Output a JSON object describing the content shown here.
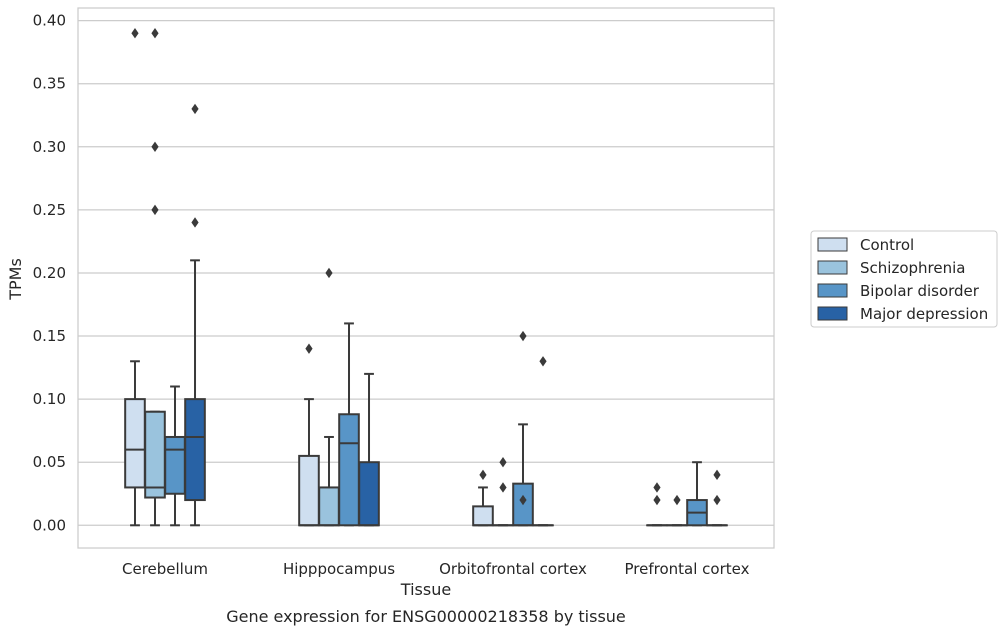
{
  "caption": "Gene expression for ENSG00000218358 by tissue",
  "chart_data": {
    "type": "box",
    "xlabel": "Tissue",
    "ylabel": "TPMs",
    "ylim": [
      -0.018,
      0.41
    ],
    "yticks": [
      "0.00",
      "0.05",
      "0.10",
      "0.15",
      "0.20",
      "0.25",
      "0.30",
      "0.35",
      "0.40"
    ],
    "categories": [
      "Cerebellum",
      "Hipppocampus",
      "Orbitofrontal cortex",
      "Prefrontal cortex"
    ],
    "grid": "horizontal",
    "legend_position": "right",
    "series": [
      {
        "name": "Control",
        "color": "#cfdff0"
      },
      {
        "name": "Schizophrenia",
        "color": "#9ac3dd"
      },
      {
        "name": "Bipolar disorder",
        "color": "#5895c7"
      },
      {
        "name": "Major depression",
        "color": "#2862a5"
      }
    ],
    "boxes": [
      [
        {
          "whislo": 0.0,
          "q1": 0.03,
          "median": 0.06,
          "q3": 0.1,
          "whishi": 0.13,
          "fliers": [
            0.39
          ]
        },
        {
          "whislo": 0.0,
          "q1": 0.022,
          "median": 0.03,
          "q3": 0.09,
          "whishi": 0.09,
          "fliers": [
            0.39,
            0.3,
            0.25
          ]
        },
        {
          "whislo": 0.0,
          "q1": 0.025,
          "median": 0.06,
          "q3": 0.07,
          "whishi": 0.11,
          "fliers": []
        },
        {
          "whislo": 0.0,
          "q1": 0.02,
          "median": 0.07,
          "q3": 0.1,
          "whishi": 0.21,
          "fliers": [
            0.33,
            0.24
          ]
        }
      ],
      [
        {
          "whislo": 0.0,
          "q1": 0.0,
          "median": 0.0,
          "q3": 0.055,
          "whishi": 0.1,
          "fliers": [
            0.14
          ]
        },
        {
          "whislo": 0.0,
          "q1": 0.0,
          "median": 0.0,
          "q3": 0.03,
          "whishi": 0.07,
          "fliers": [
            0.2
          ]
        },
        {
          "whislo": 0.0,
          "q1": 0.0,
          "median": 0.065,
          "q3": 0.088,
          "whishi": 0.16,
          "fliers": []
        },
        {
          "whislo": 0.0,
          "q1": 0.0,
          "median": 0.0,
          "q3": 0.05,
          "whishi": 0.12,
          "fliers": []
        }
      ],
      [
        {
          "whislo": 0.0,
          "q1": 0.0,
          "median": 0.0,
          "q3": 0.015,
          "whishi": 0.03,
          "fliers": [
            0.04
          ]
        },
        {
          "whislo": 0.0,
          "q1": 0.0,
          "median": 0.0,
          "q3": 0.0,
          "whishi": 0.0,
          "fliers": [
            0.05,
            0.03
          ]
        },
        {
          "whislo": 0.0,
          "q1": 0.0,
          "median": 0.0,
          "q3": 0.033,
          "whishi": 0.08,
          "fliers": [
            0.15,
            0.02
          ]
        },
        {
          "whislo": 0.0,
          "q1": 0.0,
          "median": 0.0,
          "q3": 0.0,
          "whishi": 0.0,
          "fliers": [
            0.13
          ]
        }
      ],
      [
        {
          "whislo": 0.0,
          "q1": 0.0,
          "median": 0.0,
          "q3": 0.0,
          "whishi": 0.0,
          "fliers": [
            0.03,
            0.02
          ]
        },
        {
          "whislo": 0.0,
          "q1": 0.0,
          "median": 0.0,
          "q3": 0.0,
          "whishi": 0.0,
          "fliers": [
            0.02
          ]
        },
        {
          "whislo": 0.0,
          "q1": 0.0,
          "median": 0.01,
          "q3": 0.02,
          "whishi": 0.05,
          "fliers": []
        },
        {
          "whislo": 0.0,
          "q1": 0.0,
          "median": 0.0,
          "q3": 0.0,
          "whishi": 0.0,
          "fliers": [
            0.04,
            0.02
          ]
        }
      ]
    ]
  }
}
